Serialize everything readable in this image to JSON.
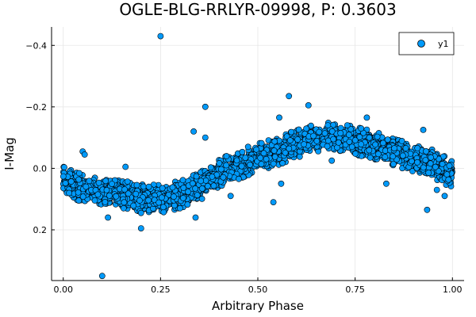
{
  "chart_data": {
    "type": "scatter",
    "title": "OGLE-BLG-RRLYR-09998, P: 0.3603",
    "xlabel": "Arbitrary Phase",
    "ylabel": "I-Mag",
    "xlim": [
      -0.03,
      1.03
    ],
    "ylim": [
      -0.46,
      0.365
    ],
    "y_inverted": true,
    "grid": true,
    "legend_position": "top-right",
    "x_ticks": [
      {
        "value": 0.0,
        "label": "0.00"
      },
      {
        "value": 0.25,
        "label": "0.25"
      },
      {
        "value": 0.5,
        "label": "0.50"
      },
      {
        "value": 0.75,
        "label": "0.75"
      },
      {
        "value": 1.0,
        "label": "1.00"
      }
    ],
    "y_ticks": [
      {
        "value": -0.4,
        "label": "−0.4"
      },
      {
        "value": -0.2,
        "label": "−0.2"
      },
      {
        "value": 0.0,
        "label": "0.0"
      },
      {
        "value": 0.2,
        "label": "0.2"
      }
    ],
    "series": [
      {
        "name": "y1",
        "color": "#009AFA",
        "trend": {
          "phase": [
            0.0,
            0.05,
            0.1,
            0.15,
            0.2,
            0.25,
            0.3,
            0.35,
            0.4,
            0.45,
            0.5,
            0.55,
            0.6,
            0.65,
            0.7,
            0.75,
            0.8,
            0.85,
            0.9,
            0.95,
            1.0
          ],
          "mag": [
            0.04,
            0.065,
            0.075,
            0.085,
            0.095,
            0.1,
            0.085,
            0.06,
            0.015,
            -0.01,
            -0.035,
            -0.055,
            -0.08,
            -0.1,
            -0.105,
            -0.09,
            -0.075,
            -0.05,
            -0.035,
            -0.015,
            0.02
          ],
          "scatter_sigma": 0.02,
          "point_count": 2600
        },
        "outliers": [
          {
            "x": 0.25,
            "y": -0.43
          },
          {
            "x": 0.1,
            "y": 0.35
          },
          {
            "x": 0.365,
            "y": -0.2
          },
          {
            "x": 0.58,
            "y": -0.235
          },
          {
            "x": 0.63,
            "y": -0.205
          },
          {
            "x": 0.365,
            "y": -0.1
          },
          {
            "x": 0.2,
            "y": 0.195
          },
          {
            "x": 0.115,
            "y": 0.16
          },
          {
            "x": 0.34,
            "y": 0.16
          },
          {
            "x": 0.54,
            "y": 0.11
          },
          {
            "x": 0.925,
            "y": -0.125
          },
          {
            "x": 0.935,
            "y": 0.135
          },
          {
            "x": 0.05,
            "y": -0.055
          },
          {
            "x": 0.055,
            "y": -0.045
          },
          {
            "x": 0.78,
            "y": -0.165
          },
          {
            "x": 0.555,
            "y": -0.165
          },
          {
            "x": 0.475,
            "y": -0.07
          },
          {
            "x": 0.335,
            "y": -0.12
          },
          {
            "x": 0.16,
            "y": -0.005
          },
          {
            "x": 0.69,
            "y": -0.025
          },
          {
            "x": 0.83,
            "y": 0.05
          },
          {
            "x": 0.56,
            "y": 0.05
          },
          {
            "x": 0.43,
            "y": 0.09
          },
          {
            "x": 0.68,
            "y": -0.14
          },
          {
            "x": 0.2,
            "y": 0.145
          },
          {
            "x": 0.22,
            "y": 0.06
          },
          {
            "x": 0.3,
            "y": 0.13
          },
          {
            "x": 0.73,
            "y": -0.14
          },
          {
            "x": 0.98,
            "y": 0.09
          },
          {
            "x": 0.96,
            "y": 0.07
          },
          {
            "x": 0.015,
            "y": 0.08
          },
          {
            "x": 0.155,
            "y": 0.13
          }
        ]
      }
    ]
  }
}
